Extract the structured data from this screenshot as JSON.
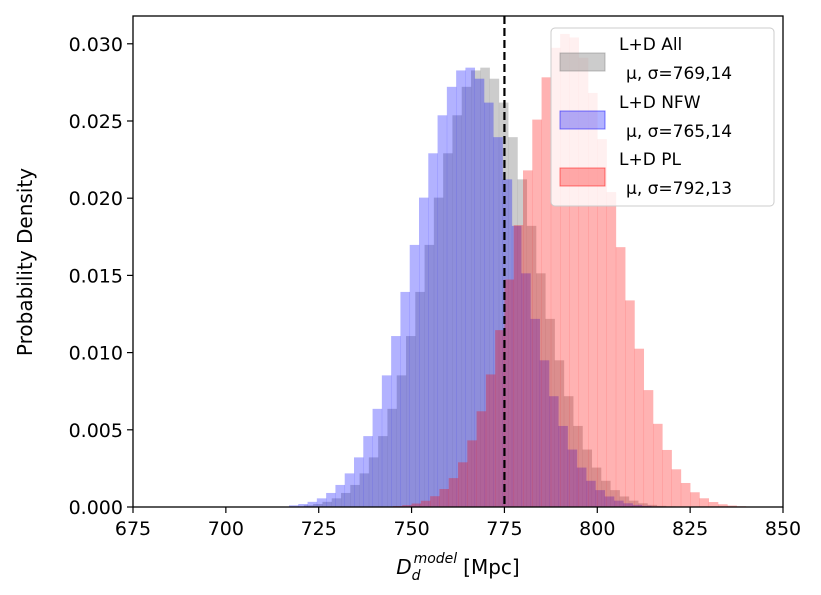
{
  "chart_data": {
    "type": "bar",
    "title": "",
    "xlabel_math": "D",
    "xlabel_sub": "d",
    "xlabel_sup": "model",
    "xlabel_unit": "[Mpc]",
    "ylabel": "Probability Density",
    "xlim": [
      675,
      850
    ],
    "ylim": [
      0,
      0.0318
    ],
    "xticks": [
      "675",
      "700",
      "725",
      "750",
      "775",
      "800",
      "825",
      "850"
    ],
    "yticks": [
      "0.000",
      "0.005",
      "0.010",
      "0.015",
      "0.020",
      "0.025",
      "0.030"
    ],
    "reference_line": {
      "x": 775,
      "style": "dashed",
      "color": "#000000"
    },
    "legend": {
      "placement": "top-right"
    },
    "series": [
      {
        "key": "all",
        "name": "L+D All",
        "label_params": "μ, σ=769,14",
        "color": "#808080",
        "opacity": 0.4,
        "stroke_opacity": 0.5,
        "mu": 769,
        "sigma": 14,
        "bin_start": 721,
        "bin_end": 822,
        "bin_width": 2.5
      },
      {
        "key": "nfw",
        "name": "L+D NFW",
        "label_params": "μ, σ=765,14",
        "color": "#0000ff",
        "opacity": 0.3,
        "stroke_opacity": 0.5,
        "mu": 765,
        "sigma": 14,
        "bin_start": 717,
        "bin_end": 817,
        "bin_width": 2.5
      },
      {
        "key": "pl",
        "name": "L+D PL",
        "label_params": "μ, σ=792,13",
        "color": "#ff0000",
        "opacity": 0.3,
        "stroke_opacity": 0.5,
        "mu": 792,
        "sigma": 13,
        "bin_start": 745,
        "bin_end": 840,
        "bin_width": 2.5
      }
    ]
  }
}
